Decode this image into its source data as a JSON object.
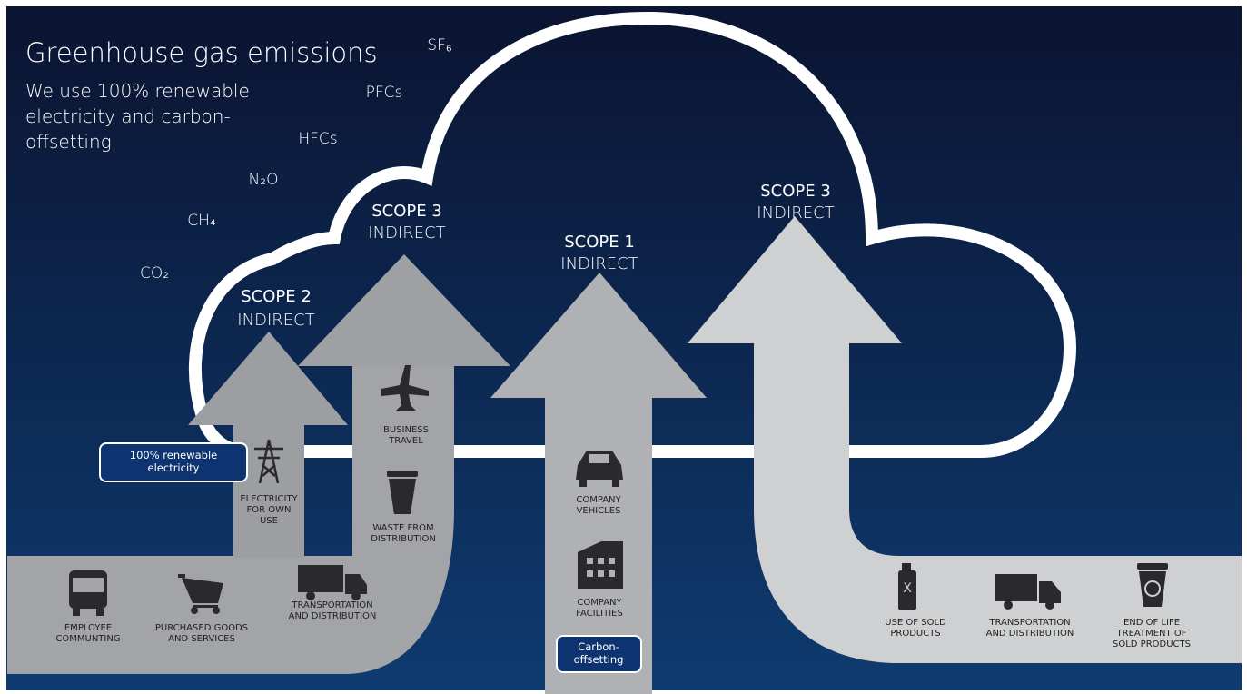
{
  "header": {
    "title": "Greenhouse gas emissions",
    "subtitle_lines": [
      "We use 100% renewable",
      "electricity and carbon-",
      "offsetting"
    ]
  },
  "gases": [
    "SF₆",
    "PFCs",
    "HFCs",
    "N₂O",
    "CH₄",
    "CO₂"
  ],
  "scopes": [
    {
      "name": "SCOPE 2",
      "kind": "INDIRECT"
    },
    {
      "name": "SCOPE 3",
      "kind": "INDIRECT"
    },
    {
      "name": "SCOPE 1",
      "kind": "INDIRECT"
    },
    {
      "name": "SCOPE 3",
      "kind": "INDIRECT"
    }
  ],
  "items": [
    "EMPLOYEE\nCOMMUNTING",
    "PURCHASED GOODS\nAND SERVICES",
    "TRANSPORTATION\nAND DISTRIBUTION",
    "ELECTRICITY\nFOR OWN\nUSE",
    "BUSINESS\nTRAVEL",
    "WASTE FROM\nDISTRIBUTION",
    "COMPANY\nVEHICLES",
    "COMPANY\nFACILITIES",
    "USE OF SOLD\nPRODUCTS",
    "TRANSPORTATION\nAND DISTRIBUTION",
    "END OF LIFE\nTREATMENT OF\nSOLD PRODUCTS"
  ],
  "icon_text": "X",
  "badges": [
    "100% renewable\nelectricity",
    "Carbon-\noffsetting"
  ]
}
